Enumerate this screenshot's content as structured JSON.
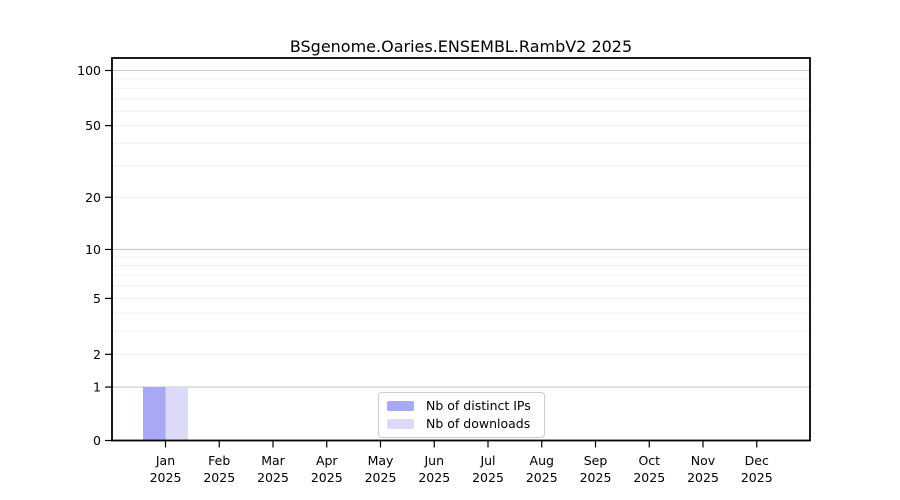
{
  "chart_data": {
    "type": "bar",
    "title": "BSgenome.Oaries.ENSEMBL.RambV2 2025",
    "categories": [
      "Jan",
      "Feb",
      "Mar",
      "Apr",
      "May",
      "Jun",
      "Jul",
      "Aug",
      "Sep",
      "Oct",
      "Nov",
      "Dec"
    ],
    "x_year": "2025",
    "series": [
      {
        "name": "Nb of distinct IPs",
        "color": "#a8a8f5",
        "values": [
          1,
          0,
          0,
          0,
          0,
          0,
          0,
          0,
          0,
          0,
          0,
          0
        ]
      },
      {
        "name": "Nb of downloads",
        "color": "#dbdbf8",
        "values": [
          1,
          0,
          0,
          0,
          0,
          0,
          0,
          0,
          0,
          0,
          0,
          0
        ]
      }
    ],
    "y_ticks": [
      0,
      1,
      2,
      5,
      10,
      20,
      50,
      100
    ],
    "y_scale": "log1p",
    "ylim": [
      0,
      100
    ],
    "grid": {
      "minor_values": [
        2,
        3,
        4,
        5,
        6,
        7,
        8,
        9,
        20,
        30,
        40,
        50,
        60,
        70,
        80,
        90
      ],
      "major_values": [
        1,
        10,
        100
      ],
      "minor_color": "#f0f0f0",
      "major_color": "#c8c8c8"
    },
    "legend": {
      "position": "lower center"
    },
    "frame_color": "#000000",
    "text_color": "#000000"
  }
}
